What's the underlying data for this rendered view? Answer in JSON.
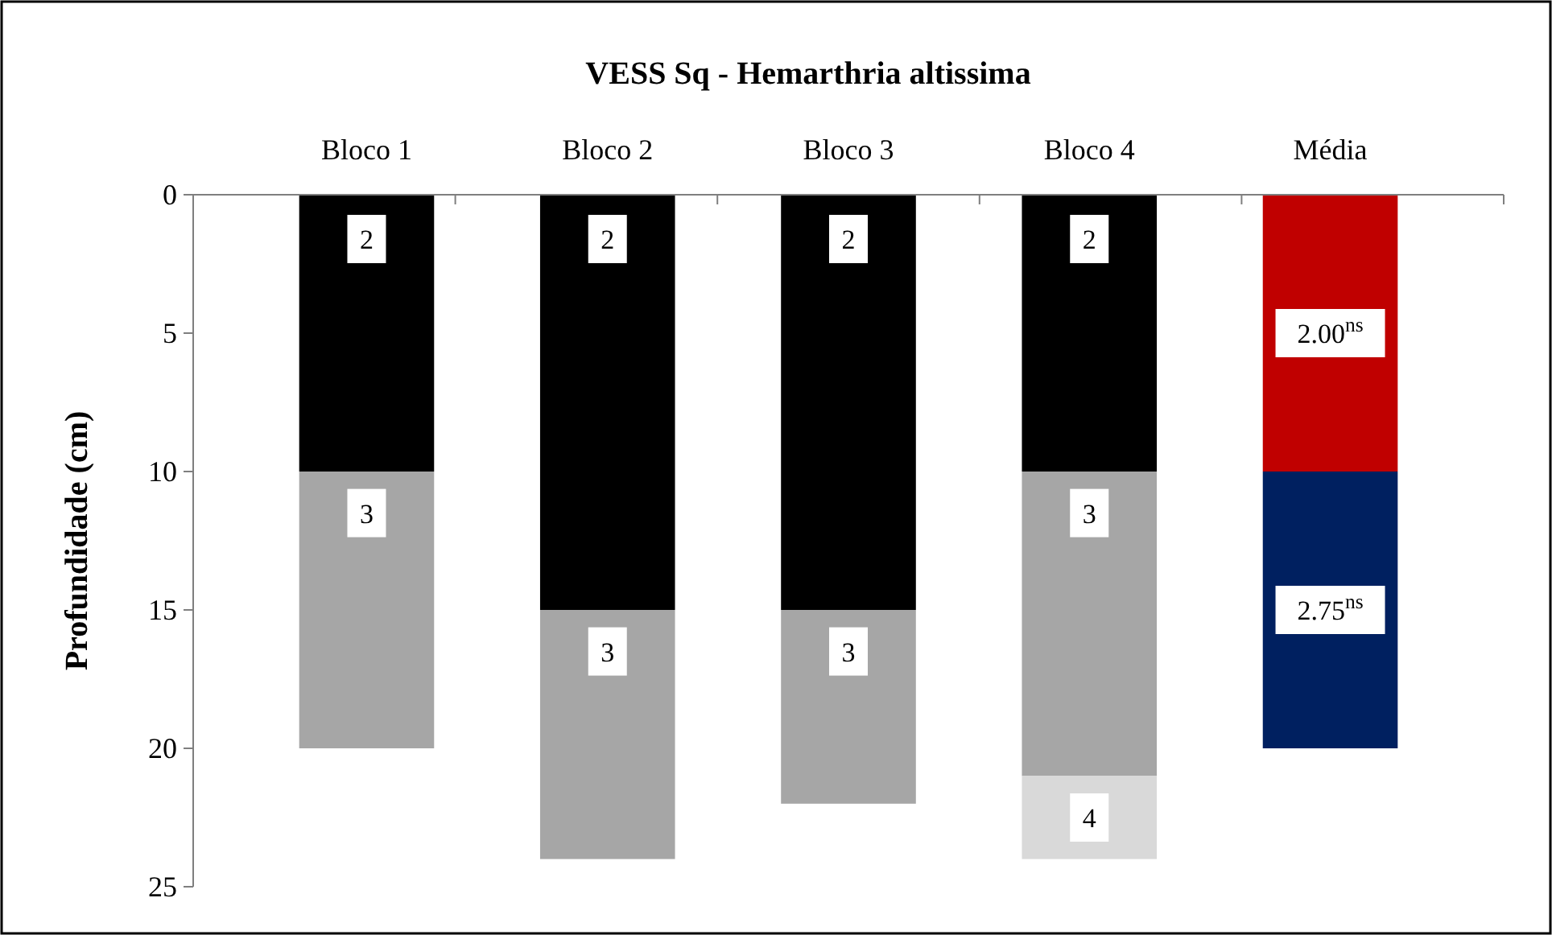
{
  "chart_data": {
    "type": "bar",
    "stacked": true,
    "title": "VESS Sq - Hemarthria altissima",
    "ylabel": "Profundidade (cm)",
    "categories": [
      "Bloco 1",
      "Bloco 2",
      "Bloco 3",
      "Bloco 4",
      "Média"
    ],
    "ylim": [
      25,
      0
    ],
    "yticks": [
      0,
      5,
      10,
      15,
      20,
      25
    ],
    "grid": false,
    "legend": false,
    "series": [
      {
        "colors": [
          "#000000",
          "#000000",
          "#000000",
          "#000000",
          "#c00000"
        ],
        "values": [
          10,
          15,
          15,
          10,
          10
        ]
      },
      {
        "colors": [
          "#a6a6a6",
          "#a6a6a6",
          "#a6a6a6",
          "#a6a6a6",
          "#002060"
        ],
        "values": [
          10,
          9,
          7,
          11,
          10
        ]
      },
      {
        "colors": [
          null,
          null,
          null,
          "#d9d9d9",
          null
        ],
        "values": [
          null,
          null,
          null,
          3,
          null
        ]
      }
    ],
    "annotations": [
      {
        "text": "2",
        "x": "Bloco 1",
        "y": 1.6
      },
      {
        "text": "3",
        "x": "Bloco 1",
        "y": 11.5
      },
      {
        "text": "2",
        "x": "Bloco 2",
        "y": 1.6
      },
      {
        "text": "3",
        "x": "Bloco 2",
        "y": 16.5
      },
      {
        "text": "2",
        "x": "Bloco 3",
        "y": 1.6
      },
      {
        "text": "3",
        "x": "Bloco 3",
        "y": 16.5
      },
      {
        "text": "2",
        "x": "Bloco 4",
        "y": 1.6
      },
      {
        "text": "3",
        "x": "Bloco 4",
        "y": 11.5
      },
      {
        "text": "4",
        "x": "Bloco 4",
        "y": 22.5
      },
      "2.00$^{ns}$",
      "2.75$^{ns}$"
    ]
  }
}
